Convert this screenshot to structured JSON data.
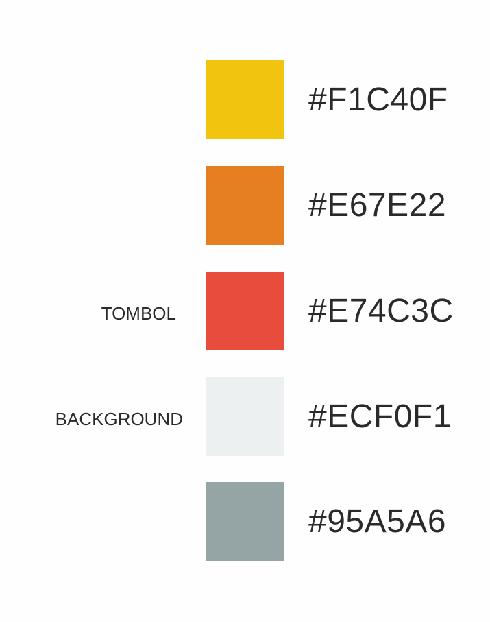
{
  "palette": [
    {
      "hex": "#F1C40F",
      "color": "#F1C40F",
      "role": ""
    },
    {
      "hex": "#E67E22",
      "color": "#E67E22",
      "role": ""
    },
    {
      "hex": "#E74C3C",
      "color": "#E74C3C",
      "role": "TOMBOL"
    },
    {
      "hex": "#ECF0F1",
      "color": "#ECF0F1",
      "role": "BACKGROUND"
    },
    {
      "hex": "#95A5A6",
      "color": "#95A5A6",
      "role": ""
    }
  ]
}
